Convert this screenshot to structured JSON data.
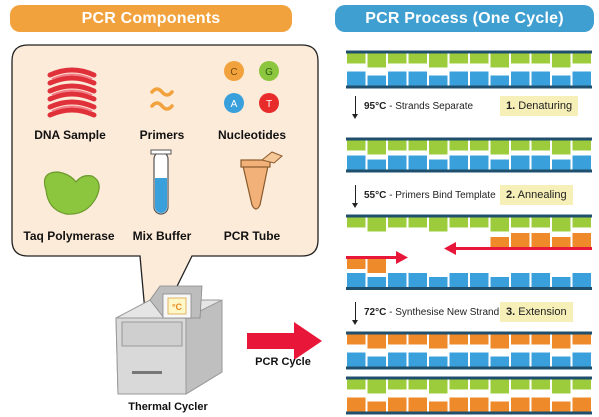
{
  "left_panel": {
    "title": "PCR Components",
    "components": [
      {
        "label": "DNA Sample",
        "icon": "dna-coil-icon"
      },
      {
        "label": "Primers",
        "icon": "primers-icon"
      },
      {
        "label": "Nucleotides",
        "icon": "nucleotides-icon"
      },
      {
        "label": "Taq Polymerase",
        "icon": "polymerase-blob-icon"
      },
      {
        "label": "Mix Buffer",
        "icon": "test-tube-icon"
      },
      {
        "label": "PCR Tube",
        "icon": "pcr-tube-icon"
      }
    ],
    "nucleotides": [
      "C",
      "G",
      "A",
      "T"
    ],
    "device_label": "Thermal Cycler",
    "device_screen": "°C"
  },
  "center": {
    "arrow_label": "PCR Cycle"
  },
  "right_panel": {
    "title": "PCR Process (One Cycle)",
    "steps": [
      {
        "temp": "95°C",
        "desc": " - Strands Separate",
        "number": "1.",
        "name": "Denaturing"
      },
      {
        "temp": "55°C",
        "desc": " - Primers Bind Template",
        "number": "2.",
        "name": "Annealing"
      },
      {
        "temp": "72°C",
        "desc": " - Synthesise New Strand",
        "number": "3.",
        "name": "Extension"
      }
    ]
  },
  "colors": {
    "orange": "#f2a23c",
    "blue_header": "#3f9fd0",
    "green_base": "#9ccc3c",
    "blue_base": "#3aa0dc",
    "orange_base": "#ee8a2a",
    "backbone": "#1f4f6c",
    "primer_red": "#e8173a",
    "callout_fill": "#fdebd9",
    "badge_fill": "#f6efb8"
  }
}
